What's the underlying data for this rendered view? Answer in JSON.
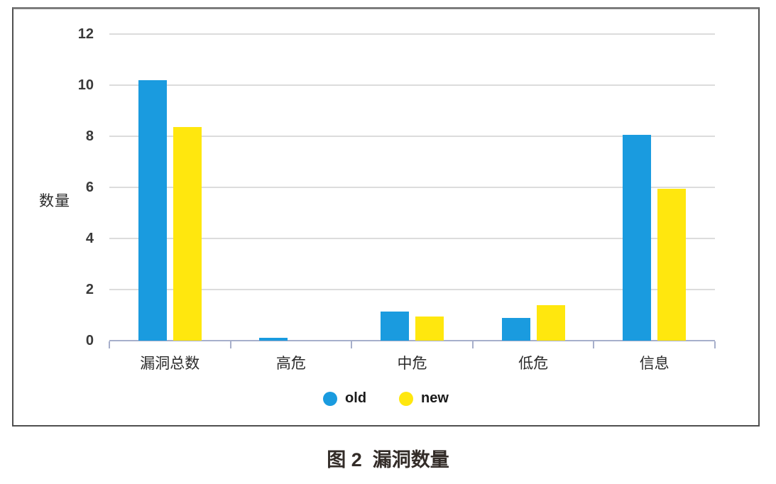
{
  "figure": {
    "caption": "图 2  漏洞数量"
  },
  "chart_data": {
    "type": "bar",
    "title": "",
    "xlabel": "",
    "ylabel": "数量",
    "categories": [
      "漏洞总数",
      "高危",
      "中危",
      "低危",
      "信息"
    ],
    "series": [
      {
        "name": "old",
        "color": "#1a9bdf",
        "values": [
          10.2,
          0.1,
          1.15,
          0.9,
          8.05
        ]
      },
      {
        "name": "new",
        "color": "#ffe70e",
        "values": [
          8.35,
          0,
          0.95,
          1.4,
          5.95
        ]
      }
    ],
    "ylim": [
      0,
      12
    ],
    "yticks": [
      0,
      2,
      4,
      6,
      8,
      10,
      12
    ],
    "grid": true,
    "legend_position": "bottom"
  },
  "colors": {
    "gridline": "#dcdcdc",
    "axis": "#a7afcb",
    "tick_text": "#3a3a3a",
    "label_text": "#2b2b2b",
    "border": "#4f4f4f"
  }
}
